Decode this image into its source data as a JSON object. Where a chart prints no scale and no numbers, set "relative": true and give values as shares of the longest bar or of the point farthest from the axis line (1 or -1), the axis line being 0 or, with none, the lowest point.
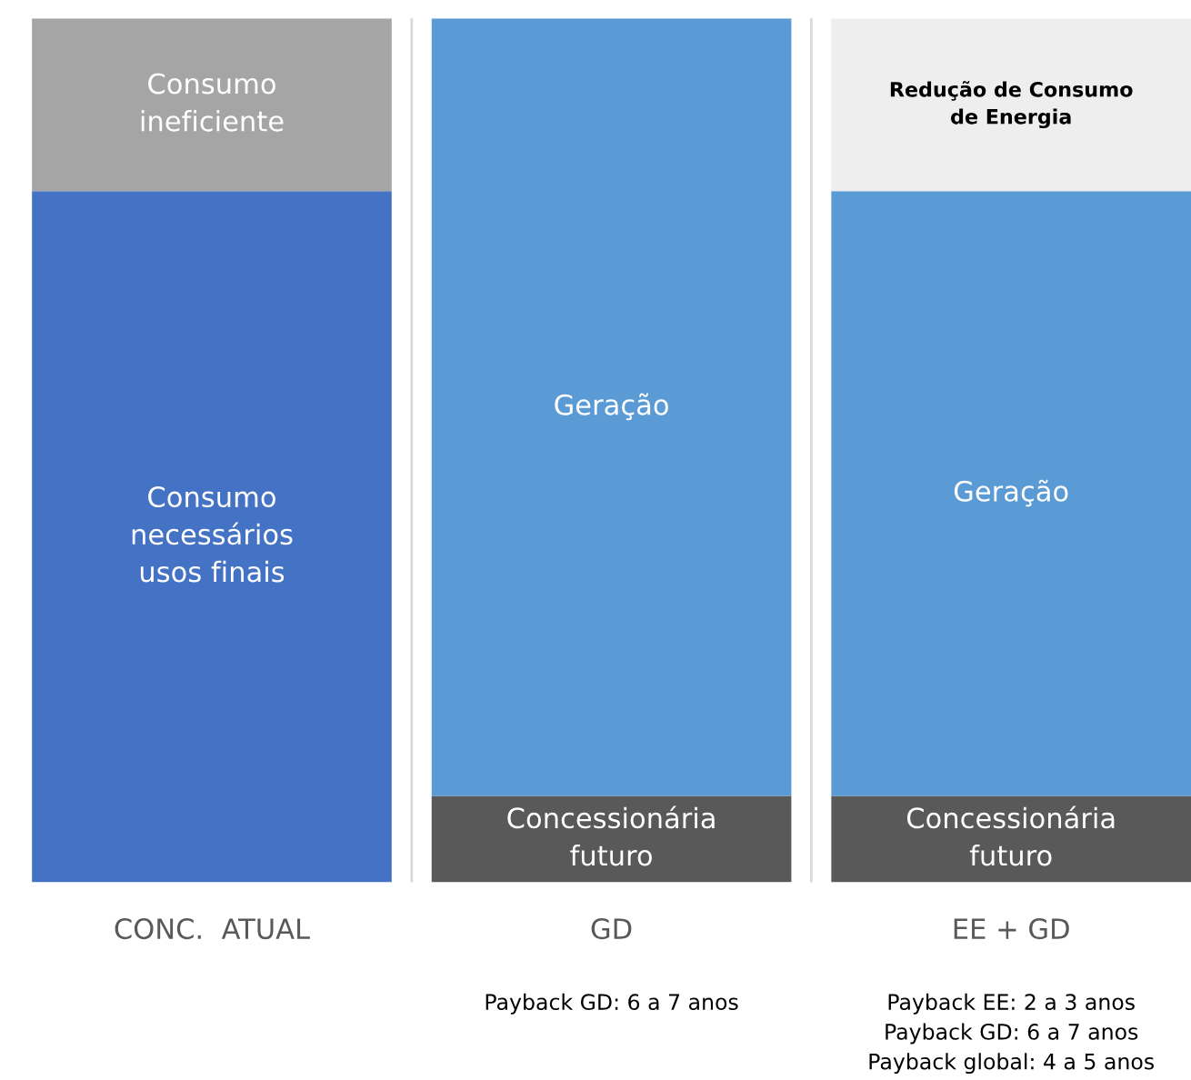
{
  "chart_data": {
    "type": "bar",
    "stacked": true,
    "relative": true,
    "categories": [
      "CONC.  ATUAL",
      "GD",
      "EE + GD"
    ],
    "series": [
      {
        "name": "Consumo\nnecessários\nusos finais",
        "color": "#4472c4",
        "values": [
          0.8,
          null,
          null
        ]
      },
      {
        "name": "Concessionária\nfuturo",
        "color": "#595959",
        "values": [
          null,
          0.1,
          0.1
        ]
      },
      {
        "name": "Consumo\nineficiente",
        "color": "#a5a5a5",
        "values": [
          0.2,
          null,
          null
        ]
      },
      {
        "name": "Geração",
        "color": "#5b9bd5",
        "values": [
          null,
          0.9,
          0.7
        ]
      },
      {
        "name": "Redução de Consumo\nde Energia",
        "color": "#eeeeee",
        "values": [
          null,
          null,
          0.2
        ]
      }
    ],
    "annotations": [
      "Payback GD: 6 a 7 anos",
      "Payback EE: 2 a 3 anos\nPayback GD: 6 a 7 anos\nPayback global: 4 a 5 anos"
    ],
    "grid": false,
    "legend": false
  }
}
